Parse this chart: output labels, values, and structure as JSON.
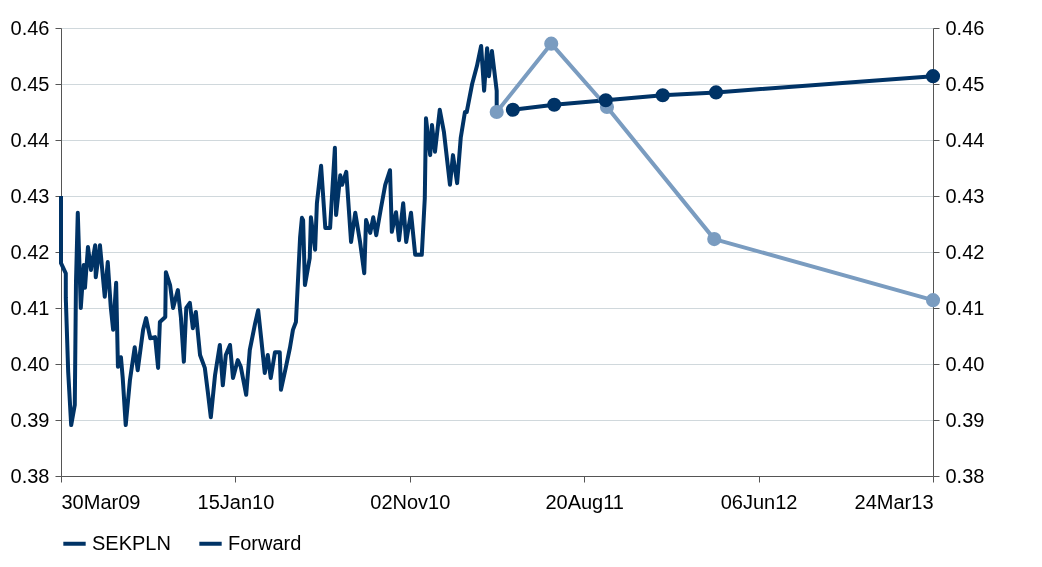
{
  "chart_data": {
    "type": "line",
    "xlim": [
      "2009-03-30",
      "2013-03-24"
    ],
    "xticks": [
      {
        "value": "2009-03-30",
        "label": "30Mar09"
      },
      {
        "value": "2010-01-15",
        "label": "15Jan10"
      },
      {
        "value": "2010-11-02",
        "label": "02Nov10"
      },
      {
        "value": "2011-08-20",
        "label": "20Aug11"
      },
      {
        "value": "2012-06-06",
        "label": "06Jun12"
      },
      {
        "value": "2013-03-24",
        "label": "24Mar13"
      }
    ],
    "ylim": [
      0.38,
      0.46
    ],
    "yticks": [
      0.38,
      0.39,
      {
        "value": 0.4,
        "label": "0.40"
      },
      0.41,
      0.42,
      0.43,
      0.44,
      0.45,
      0.46
    ],
    "y2lim": [
      0.38,
      0.46
    ],
    "y2ticks": [
      0.38,
      0.39,
      {
        "value": 0.4,
        "label": "0.40"
      },
      0.41,
      0.42,
      0.43,
      0.44,
      0.45,
      0.46
    ],
    "grid": "y",
    "legend": "bottom",
    "series": [
      {
        "name": "SEKPLN",
        "color": "#003366",
        "marker": "none",
        "x": [
          "2009-03-30",
          "2009-03-30",
          "2009-04-07",
          "2009-04-07",
          "2009-04-11",
          "2009-04-16",
          "2009-04-22",
          "2009-04-24",
          "2009-04-27",
          "2009-05-02",
          "2009-05-07",
          "2009-05-09",
          "2009-05-14",
          "2009-05-19",
          "2009-05-26",
          "2009-05-27",
          "2009-06-03",
          "2009-06-11",
          "2009-06-16",
          "2009-06-21",
          "2009-06-25",
          "2009-06-30",
          "2009-07-03",
          "2009-07-08",
          "2009-07-11",
          "2009-07-16",
          "2009-07-23",
          "2009-07-31",
          "2009-08-05",
          "2009-08-14",
          "2009-08-19",
          "2009-08-26",
          "2009-09-03",
          "2009-09-08",
          "2009-09-11",
          "2009-09-20",
          "2009-09-21",
          "2009-09-28",
          "2009-10-03",
          "2009-10-11",
          "2009-10-16",
          "2009-10-21",
          "2009-10-25",
          "2009-10-31",
          "2009-11-05",
          "2009-11-10",
          "2009-11-17",
          "2009-11-25",
          "2009-11-30",
          "2009-12-05",
          "2009-12-12",
          "2009-12-20",
          "2009-12-25",
          "2009-12-30",
          "2010-01-06",
          "2010-01-11",
          "2010-01-19",
          "2010-01-24",
          "2010-02-02",
          "2010-02-08",
          "2010-02-17",
          "2010-02-22",
          "2010-02-27",
          "2010-03-05",
          "2010-03-10",
          "2010-03-15",
          "2010-03-22",
          "2010-03-30",
          "2010-04-01",
          "2010-04-09",
          "2010-04-16",
          "2010-04-21",
          "2010-04-26",
          "2010-05-03",
          "2010-05-06",
          "2010-05-08",
          "2010-05-11",
          "2010-05-19",
          "2010-05-21",
          "2010-05-28",
          "2010-05-31",
          "2010-06-07",
          "2010-06-14",
          "2010-06-22",
          "2010-06-30",
          "2010-07-02",
          "2010-07-09",
          "2010-07-12",
          "2010-07-19",
          "2010-07-27",
          "2010-08-03",
          "2010-08-11",
          "2010-08-18",
          "2010-08-21",
          "2010-08-28",
          "2010-09-02",
          "2010-09-07",
          "2010-09-15",
          "2010-09-22",
          "2010-09-30",
          "2010-10-03",
          "2010-10-10",
          "2010-10-15",
          "2010-10-22",
          "2010-10-27",
          "2010-11-04",
          "2010-11-11",
          "2010-11-22",
          "2010-11-27",
          "2010-11-29",
          "2010-12-06",
          "2010-12-09",
          "2010-12-14",
          "2010-12-22",
          "2010-12-29",
          "2011-01-08",
          "2011-01-13",
          "2011-01-20",
          "2011-01-26",
          "2011-02-02",
          "2011-02-05",
          "2011-02-14",
          "2011-02-22",
          "2011-03-01",
          "2011-03-06",
          "2011-03-11",
          "2011-03-14",
          "2011-03-19",
          "2011-03-27",
          "2011-03-27"
        ],
        "values": [
          0.43,
          0.418,
          0.4162,
          0.4118,
          0.3986,
          0.3891,
          0.3927,
          0.4146,
          0.427,
          0.41,
          0.4177,
          0.4136,
          0.4209,
          0.4168,
          0.4212,
          0.4155,
          0.4212,
          0.412,
          0.4182,
          0.4102,
          0.4061,
          0.4145,
          0.3995,
          0.4012,
          0.3975,
          0.3891,
          0.3971,
          0.403,
          0.3989,
          0.4061,
          0.4082,
          0.4046,
          0.4048,
          0.3993,
          0.4075,
          0.4084,
          0.4164,
          0.4141,
          0.41,
          0.4132,
          0.4084,
          0.4004,
          0.41,
          0.4109,
          0.4064,
          0.4093,
          0.4016,
          0.3993,
          0.395,
          0.3905,
          0.398,
          0.4034,
          0.3962,
          0.4016,
          0.4034,
          0.3975,
          0.4007,
          0.3995,
          0.3945,
          0.4025,
          0.4073,
          0.4096,
          0.4046,
          0.3984,
          0.4016,
          0.3975,
          0.4021,
          0.4021,
          0.3954,
          0.3993,
          0.4029,
          0.4061,
          0.4075,
          0.4227,
          0.4261,
          0.4257,
          0.4141,
          0.4189,
          0.4262,
          0.4204,
          0.4287,
          0.4354,
          0.4243,
          0.4243,
          0.4386,
          0.4266,
          0.4337,
          0.432,
          0.4343,
          0.4218,
          0.427,
          0.4218,
          0.4162,
          0.4257,
          0.4234,
          0.4262,
          0.423,
          0.4279,
          0.432,
          0.4346,
          0.4236,
          0.4271,
          0.4221,
          0.4287,
          0.4218,
          0.427,
          0.4195,
          0.4195,
          0.4296,
          0.4439,
          0.4373,
          0.4427,
          0.4379,
          0.4454,
          0.4414,
          0.432,
          0.4373,
          0.4323,
          0.4404,
          0.445,
          0.445,
          0.45,
          0.4532,
          0.4568,
          0.4488,
          0.4564,
          0.4514,
          0.4559,
          0.4488,
          0.445
        ]
      },
      {
        "name": "Forward",
        "color": "#003366",
        "marker": "circle",
        "x": [
          "2011-04-23",
          "2011-07-01",
          "2011-09-25",
          "2011-12-29",
          "2012-03-27",
          "2013-03-24"
        ],
        "values": [
          0.4454,
          0.4463,
          0.4471,
          0.448,
          0.4485,
          0.4514
        ]
      },
      {
        "color": "#7a9cc0",
        "marker": "circle",
        "x": [
          "2011-03-27",
          "2011-06-26",
          "2011-09-27",
          "2012-03-24",
          "2013-03-24"
        ],
        "values": [
          0.445,
          0.4572,
          0.4459,
          0.4223,
          0.4114
        ]
      }
    ]
  }
}
